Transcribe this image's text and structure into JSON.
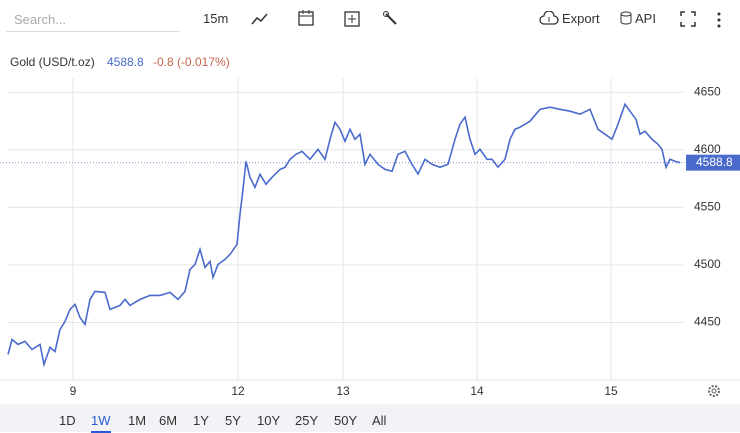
{
  "toolbar": {
    "search_placeholder": "Search...",
    "interval": "15m",
    "export": "Export",
    "api": "API"
  },
  "ranges": {
    "options": [
      "1D",
      "1W",
      "1M",
      "6M",
      "1Y",
      "5Y",
      "10Y",
      "25Y",
      "50Y",
      "All"
    ],
    "selected": 1
  },
  "chart_data": {
    "type": "line",
    "title": "Gold (USD/t.oz)",
    "last_price": 4588.8,
    "change_label": "-0.8 (-0.017%)",
    "color": "#4a6bcc",
    "grid": true,
    "xlim": [
      0,
      676
    ],
    "xticks": [
      {
        "value": 65,
        "label": "9"
      },
      {
        "value": 230,
        "label": "12"
      },
      {
        "value": 335,
        "label": "13"
      },
      {
        "value": 469,
        "label": "14"
      },
      {
        "value": 603,
        "label": "15"
      }
    ],
    "ylim": [
      4400,
      4678
    ],
    "yticks": [
      4450,
      4500,
      4550,
      4600,
      4650
    ],
    "x": [
      0,
      4,
      10,
      17,
      24,
      32,
      36,
      42,
      47,
      52,
      57,
      62,
      67,
      72,
      77,
      82,
      87,
      97,
      102,
      112,
      117,
      122,
      132,
      142,
      152,
      162,
      170,
      177,
      182,
      187,
      192,
      197,
      202,
      205,
      210,
      217,
      222,
      229,
      232,
      235,
      238,
      242,
      247,
      252,
      258,
      264,
      272,
      277,
      282,
      288,
      294,
      302,
      310,
      317,
      322,
      327,
      332,
      337,
      342,
      347,
      352,
      357,
      362,
      370,
      377,
      384,
      390,
      397,
      404,
      410,
      417,
      424,
      432,
      440,
      447,
      452,
      457,
      462,
      467,
      472,
      479,
      484,
      490,
      497,
      502,
      507,
      512,
      522,
      532,
      542,
      552,
      562,
      572,
      582,
      590,
      597,
      604,
      610,
      617,
      622,
      628,
      632,
      637,
      644,
      650,
      654,
      658,
      662,
      667,
      672
    ],
    "values": [
      4422.2,
      4435.2,
      4430.9,
      4433.5,
      4426.5,
      4430.9,
      4413.5,
      4428.3,
      4424.8,
      4443.9,
      4450.9,
      4461.3,
      4465.7,
      4454.3,
      4448.3,
      4470,
      4477,
      4476.1,
      4461.3,
      4464.8,
      4470,
      4464.8,
      4470,
      4473.5,
      4473.5,
      4476.1,
      4470,
      4477,
      4496.1,
      4500.4,
      4513.5,
      4497.8,
      4503,
      4489.1,
      4500.4,
      4504.8,
      4509.1,
      4517.8,
      4543.9,
      4565.7,
      4590,
      4576.1,
      4567.4,
      4578.7,
      4570,
      4576.1,
      4583,
      4584.8,
      4591.7,
      4596.1,
      4598.7,
      4591.7,
      4600.4,
      4591.7,
      4609.1,
      4623.9,
      4617.8,
      4607.4,
      4617.8,
      4609.1,
      4613.5,
      4587.4,
      4596.1,
      4587.4,
      4583,
      4581.3,
      4596.1,
      4598.7,
      4587.4,
      4579,
      4591.7,
      4587.4,
      4584.8,
      4587.4,
      4609.1,
      4622.2,
      4628.3,
      4609.1,
      4596.1,
      4600.4,
      4591.7,
      4591.7,
      4585,
      4591.7,
      4609.1,
      4617.8,
      4619.6,
      4624.8,
      4635.2,
      4637,
      4635.2,
      4633.5,
      4630.9,
      4635.2,
      4617.8,
      4613.5,
      4609.1,
      4622.2,
      4639.6,
      4633.5,
      4626.5,
      4613.5,
      4616.1,
      4609.1,
      4604.8,
      4600.4,
      4584.8,
      4591.7,
      4590,
      4588.8
    ]
  }
}
